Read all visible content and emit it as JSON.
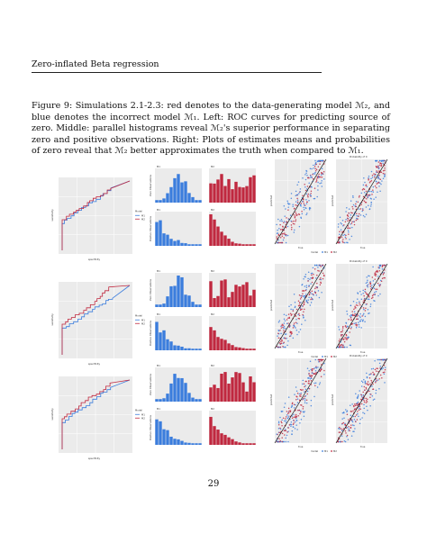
{
  "header": {
    "running_title": "Zero-inflated Beta regression"
  },
  "caption": {
    "text": "Figure 9: Simulations 2.1-2.3: red denotes to the data-generating model ℳ₂, and blue denotes the incorrect model ℳ₁. Left: ROC curves for predicting source of zero. Middle: parallel histograms reveal ℳ₂'s superior performance in separating zero and positive observations. Right: Plots of estimates means and probabilities of zero reveal that ℳ₂ better approximates the truth when compared to ℳ₁."
  },
  "figure": {
    "rows": [
      {
        "roc": {
          "ylabel": "sensitivity",
          "xlabel": "specificity",
          "legend_title": "Model",
          "legend": [
            "M1",
            "M2"
          ]
        },
        "hist_top": {
          "ylabel": "Zero Observations",
          "blue_title": "M1",
          "red_title": "M2"
        },
        "hist_bottom": {
          "ylabel": "Positive Observations",
          "blue_title": "M1",
          "red_title": "M2"
        },
        "scatter_titles": [
          "",
          "Probability of 0"
        ],
        "scatter_xlabel": "true",
        "scatter_ylabel": "predicted",
        "scatter_legend": [
          "model",
          "M1",
          "M2"
        ]
      },
      {
        "roc": {
          "ylabel": "sensitivity",
          "xlabel": "specificity",
          "legend_title": "Model",
          "legend": [
            "M1",
            "M2"
          ]
        },
        "hist_top": {
          "ylabel": "Zero Observations",
          "blue_title": "M1",
          "red_title": "M2"
        },
        "hist_bottom": {
          "ylabel": "Positive Observations",
          "blue_title": "M1",
          "red_title": "M2"
        },
        "scatter_titles": [
          "",
          "Probability of 0"
        ],
        "scatter_xlabel": "true",
        "scatter_ylabel": "predicted",
        "scatter_legend": [
          "model",
          "M1",
          "M2"
        ]
      },
      {
        "roc": {
          "ylabel": "sensitivity",
          "xlabel": "specificity",
          "legend_title": "Model",
          "legend": [
            "M1",
            "M2"
          ]
        },
        "hist_top": {
          "ylabel": "Zero Observations",
          "blue_title": "M1",
          "red_title": "M2"
        },
        "hist_bottom": {
          "ylabel": "Positive Observations",
          "blue_title": "M1",
          "red_title": "M2"
        },
        "scatter_titles": [
          "",
          "Probability of 0"
        ],
        "scatter_xlabel": "true",
        "scatter_ylabel": "predicted",
        "scatter_legend": [
          "model",
          "M1",
          "M2"
        ]
      }
    ],
    "colors": {
      "m1_blue": "#3b7ddd",
      "m2_red": "#c0283f",
      "panel_bg": "#ebebeb",
      "grid": "#ffffff"
    }
  },
  "page_number": "29"
}
